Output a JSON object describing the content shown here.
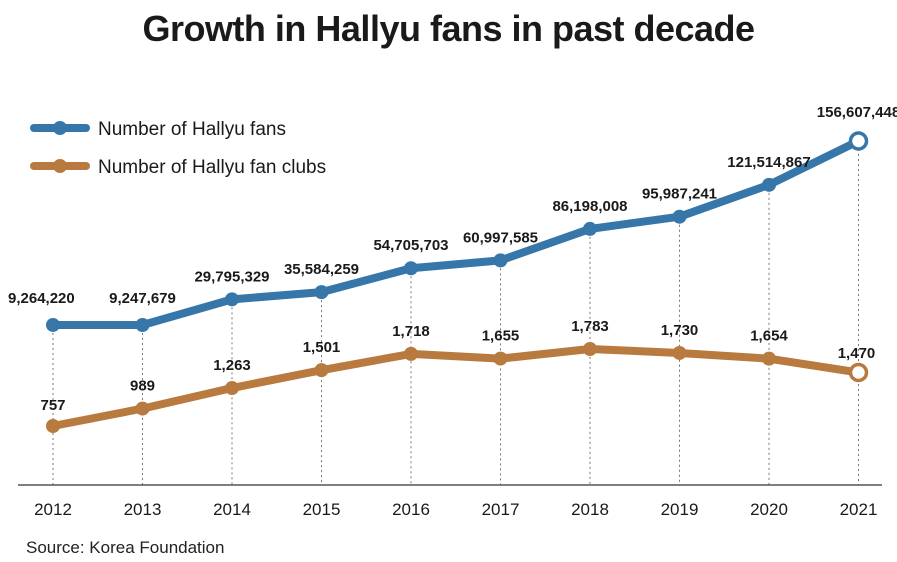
{
  "chart_data": {
    "type": "line",
    "title": "Growth in Hallyu fans in past decade",
    "categories": [
      "2012",
      "2013",
      "2014",
      "2015",
      "2016",
      "2017",
      "2018",
      "2019",
      "2020",
      "2021"
    ],
    "series": [
      {
        "name": "Number of Hallyu fans",
        "color": "#3676a8",
        "values": [
          9264220,
          9247679,
          29795329,
          35584259,
          54705703,
          60997585,
          86198008,
          95987241,
          121514867,
          156607448
        ],
        "labels": [
          "9,264,220",
          "9,247,679",
          "29,795,329",
          "35,584,259",
          "54,705,703",
          "60,997,585",
          "86,198,008",
          "95,987,241",
          "121,514,867",
          "156,607,448"
        ]
      },
      {
        "name": "Number of Hallyu fan clubs",
        "color": "#b87a3e",
        "values": [
          757,
          989,
          1263,
          1501,
          1718,
          1655,
          1783,
          1730,
          1654,
          1470
        ],
        "labels": [
          "757",
          "989",
          "1,263",
          "1,501",
          "1,718",
          "1,655",
          "1,783",
          "1,730",
          "1,654",
          "1,470"
        ]
      }
    ],
    "legend": "top-left",
    "grid": "dotted vertical guides"
  },
  "source": "Source: Korea Foundation"
}
